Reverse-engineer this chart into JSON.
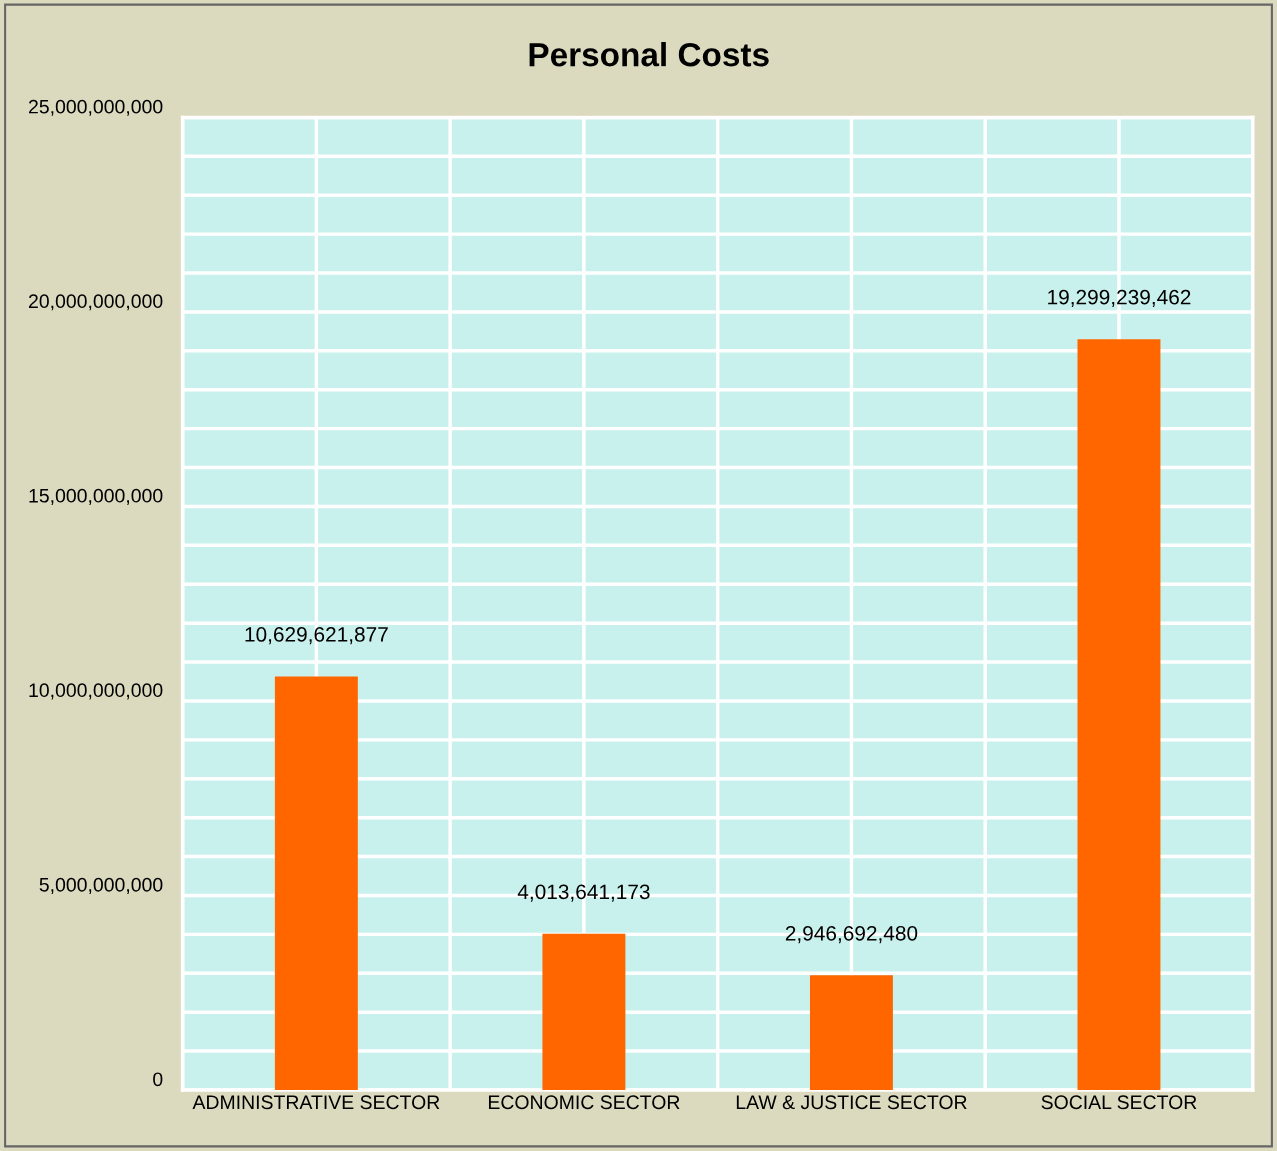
{
  "chart_data": {
    "type": "bar",
    "title": "Personal Costs",
    "categories": [
      "ADMINISTRATIVE SECTOR",
      "ECONOMIC SECTOR",
      "LAW & JUSTICE SECTOR",
      "SOCIAL SECTOR"
    ],
    "values": [
      10629621877,
      4013641173,
      2946692480,
      19299239462
    ],
    "color": "#ff6600",
    "ylim": [
      0,
      25000000000
    ],
    "yticks": [
      {
        "value": 0,
        "label": "0"
      },
      {
        "value": 1000000000,
        "label": null
      },
      {
        "value": 2000000000,
        "label": null
      },
      {
        "value": 3000000000,
        "label": null
      },
      {
        "value": 4000000000,
        "label": null
      },
      {
        "value": 5000000000,
        "label": "5,000,000,000"
      },
      {
        "value": 6000000000,
        "label": null
      },
      {
        "value": 7000000000,
        "label": null
      },
      {
        "value": 8000000000,
        "label": null
      },
      {
        "value": 9000000000,
        "label": null
      },
      {
        "value": 10000000000,
        "label": "10,000,000,000"
      },
      {
        "value": 11000000000,
        "label": null
      },
      {
        "value": 12000000000,
        "label": null
      },
      {
        "value": 13000000000,
        "label": null
      },
      {
        "value": 14000000000,
        "label": null
      },
      {
        "value": 15000000000,
        "label": "15,000,000,000"
      },
      {
        "value": 16000000000,
        "label": null
      },
      {
        "value": 17000000000,
        "label": null
      },
      {
        "value": 18000000000,
        "label": null
      },
      {
        "value": 19000000000,
        "label": null
      },
      {
        "value": 20000000000,
        "label": "20,000,000,000"
      },
      {
        "value": 21000000000,
        "label": null
      },
      {
        "value": 22000000000,
        "label": null
      },
      {
        "value": 23000000000,
        "label": null
      },
      {
        "value": 24000000000,
        "label": null
      },
      {
        "value": 25000000000,
        "label": "25,000,000,000"
      }
    ],
    "value_labels": [
      "10,629,621,877",
      "4,013,641,173",
      "2,946,692,480",
      "19,299,239,462"
    ],
    "grid": true
  }
}
